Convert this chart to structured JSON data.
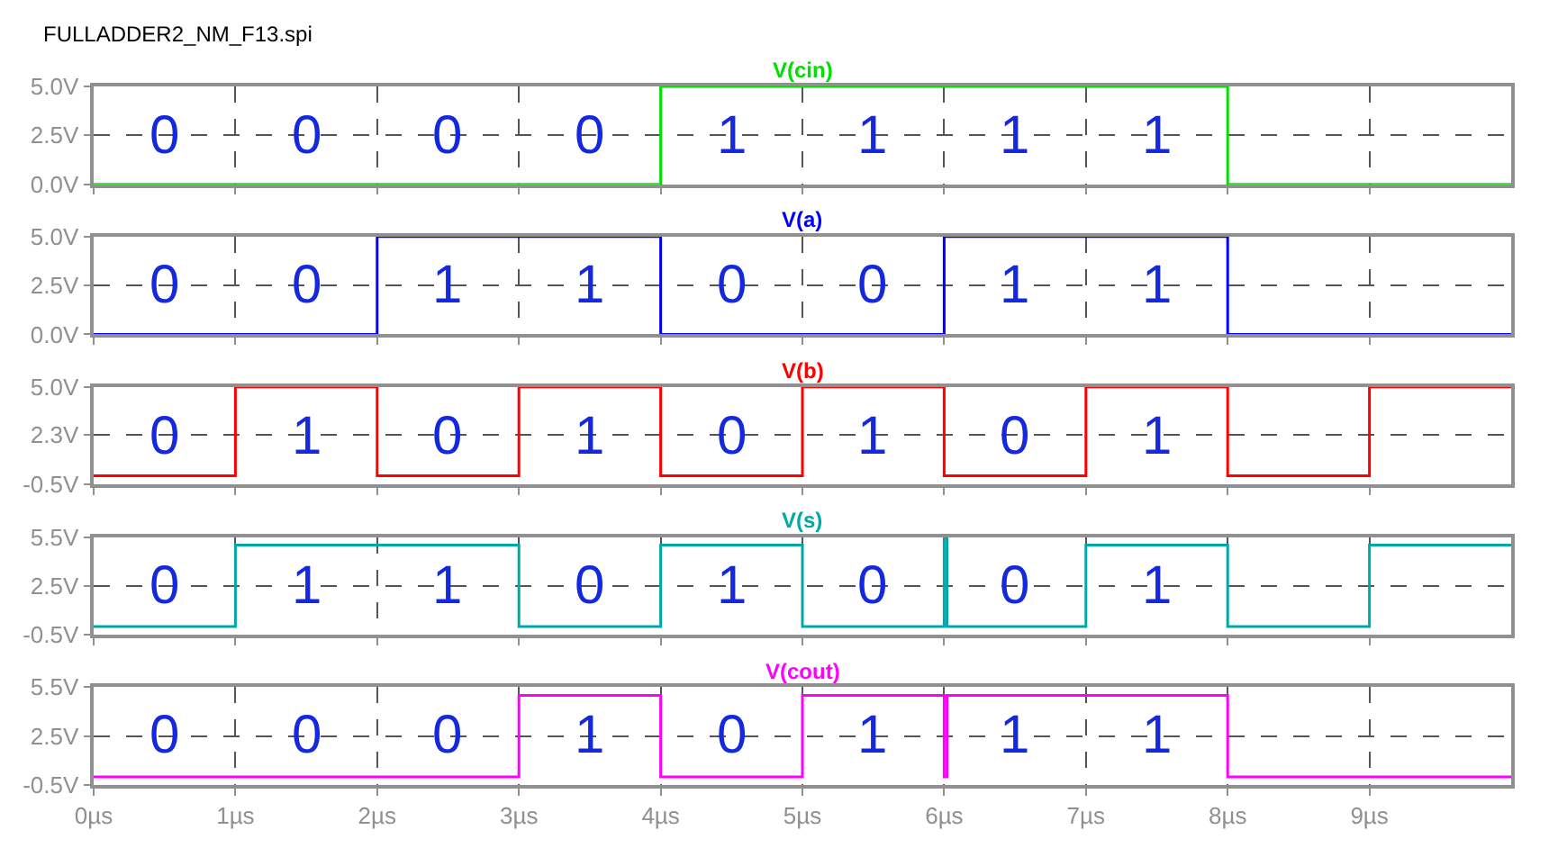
{
  "chart_data": [
    {
      "type": "step",
      "title": "V(cin)",
      "subtitle": "FULLADDER2_NM_F13.spi",
      "annotations": [
        "0",
        "0",
        "0",
        "0",
        "1",
        "1",
        "1",
        "1"
      ],
      "x": [
        0,
        4,
        8,
        10
      ],
      "series": [
        {
          "color": "#00e000",
          "values": [
            0,
            5,
            0,
            0
          ]
        }
      ],
      "xlim": [
        0,
        10
      ],
      "xticks": [
        {
          "value": 0,
          "label": null
        },
        {
          "value": 1,
          "label": null
        },
        {
          "value": 2,
          "label": null
        },
        {
          "value": 3,
          "label": null
        },
        {
          "value": 4,
          "label": null
        },
        {
          "value": 5,
          "label": null
        },
        {
          "value": 6,
          "label": null
        },
        {
          "value": 7,
          "label": null
        },
        {
          "value": 8,
          "label": null
        },
        {
          "value": 9,
          "label": null
        }
      ],
      "ylim": [
        0,
        5
      ],
      "yticks": [
        {
          "value": 0,
          "label": "0.0V"
        },
        {
          "value": 2.5,
          "label": "2.5V"
        },
        {
          "value": 5,
          "label": "5.0V"
        }
      ],
      "grid": true,
      "tick_labels": "y"
    },
    {
      "type": "step",
      "title": "V(a)",
      "annotations": [
        "0",
        "0",
        "1",
        "1",
        "0",
        "0",
        "1",
        "1"
      ],
      "x": [
        0,
        2,
        4,
        6,
        8,
        10
      ],
      "series": [
        {
          "color": "#0000ff",
          "values": [
            0,
            5,
            0,
            5,
            0,
            0
          ]
        }
      ],
      "xlim": [
        0,
        10
      ],
      "xticks": [
        {
          "value": 0,
          "label": null
        },
        {
          "value": 1,
          "label": null
        },
        {
          "value": 2,
          "label": null
        },
        {
          "value": 3,
          "label": null
        },
        {
          "value": 4,
          "label": null
        },
        {
          "value": 5,
          "label": null
        },
        {
          "value": 6,
          "label": null
        },
        {
          "value": 7,
          "label": null
        },
        {
          "value": 8,
          "label": null
        },
        {
          "value": 9,
          "label": null
        }
      ],
      "ylim": [
        0,
        5
      ],
      "yticks": [
        {
          "value": 0,
          "label": "0.0V"
        },
        {
          "value": 2.5,
          "label": "2.5V"
        },
        {
          "value": 5,
          "label": "5.0V"
        }
      ],
      "grid": true,
      "tick_labels": "y"
    },
    {
      "type": "step",
      "title": "V(b)",
      "annotations": [
        "0",
        "1",
        "0",
        "1",
        "0",
        "1",
        "0",
        "1"
      ],
      "x": [
        0,
        1,
        2,
        3,
        4,
        5,
        6,
        7,
        8,
        9,
        10
      ],
      "series": [
        {
          "color": "#ff0000",
          "values": [
            0,
            5,
            0,
            5,
            0,
            5,
            0,
            5,
            0,
            5,
            5
          ]
        }
      ],
      "xlim": [
        0,
        10
      ],
      "xticks": [
        {
          "value": 0,
          "label": null
        },
        {
          "value": 1,
          "label": null
        },
        {
          "value": 2,
          "label": null
        },
        {
          "value": 3,
          "label": null
        },
        {
          "value": 4,
          "label": null
        },
        {
          "value": 5,
          "label": null
        },
        {
          "value": 6,
          "label": null
        },
        {
          "value": 7,
          "label": null
        },
        {
          "value": 8,
          "label": null
        },
        {
          "value": 9,
          "label": null
        }
      ],
      "ylim": [
        -0.5,
        5
      ],
      "yticks": [
        {
          "value": -0.5,
          "label": "-0.5V"
        },
        {
          "value": 2.3,
          "label": "2.3V"
        },
        {
          "value": 5,
          "label": "5.0V"
        }
      ],
      "grid": true,
      "tick_labels": "y"
    },
    {
      "type": "step",
      "title": "V(s)",
      "annotations": [
        "0",
        "1",
        "1",
        "0",
        "1",
        "0",
        "0",
        "1"
      ],
      "x": [
        0,
        1,
        3,
        4,
        5,
        6,
        6.02,
        7,
        8,
        9,
        10
      ],
      "series": [
        {
          "color": "#00a8a8",
          "values": [
            0,
            5,
            0,
            5,
            0,
            5.5,
            0,
            5,
            0,
            5,
            5
          ]
        }
      ],
      "xlim": [
        0,
        10
      ],
      "xticks": [
        {
          "value": 0,
          "label": null
        },
        {
          "value": 1,
          "label": null
        },
        {
          "value": 2,
          "label": null
        },
        {
          "value": 3,
          "label": null
        },
        {
          "value": 4,
          "label": null
        },
        {
          "value": 5,
          "label": null
        },
        {
          "value": 6,
          "label": null
        },
        {
          "value": 7,
          "label": null
        },
        {
          "value": 8,
          "label": null
        },
        {
          "value": 9,
          "label": null
        }
      ],
      "ylim": [
        -0.5,
        5.5
      ],
      "yticks": [
        {
          "value": -0.5,
          "label": "-0.5V"
        },
        {
          "value": 2.5,
          "label": "2.5V"
        },
        {
          "value": 5.5,
          "label": "5.5V"
        }
      ],
      "grid": true,
      "tick_labels": "y"
    },
    {
      "type": "step",
      "title": "V(cout)",
      "annotations": [
        "0",
        "0",
        "0",
        "1",
        "0",
        "1",
        "1",
        "1"
      ],
      "x": [
        0,
        3,
        4,
        5,
        6,
        6.02,
        8,
        10
      ],
      "series": [
        {
          "color": "#ff00ff",
          "values": [
            0,
            5,
            0,
            5,
            0,
            5,
            0,
            0
          ]
        }
      ],
      "xlim": [
        0,
        10
      ],
      "xticks": [
        {
          "value": 0,
          "label": "0µs"
        },
        {
          "value": 1,
          "label": "1µs"
        },
        {
          "value": 2,
          "label": "2µs"
        },
        {
          "value": 3,
          "label": "3µs"
        },
        {
          "value": 4,
          "label": "4µs"
        },
        {
          "value": 5,
          "label": "5µs"
        },
        {
          "value": 6,
          "label": "6µs"
        },
        {
          "value": 7,
          "label": "7µs"
        },
        {
          "value": 8,
          "label": "8µs"
        },
        {
          "value": 9,
          "label": "9µs"
        }
      ],
      "ylim": [
        -0.5,
        5.5
      ],
      "yticks": [
        {
          "value": -0.5,
          "label": "-0.5V"
        },
        {
          "value": 2.5,
          "label": "2.5V"
        },
        {
          "value": 5.5,
          "label": "5.5V"
        }
      ],
      "grid": true
    }
  ]
}
